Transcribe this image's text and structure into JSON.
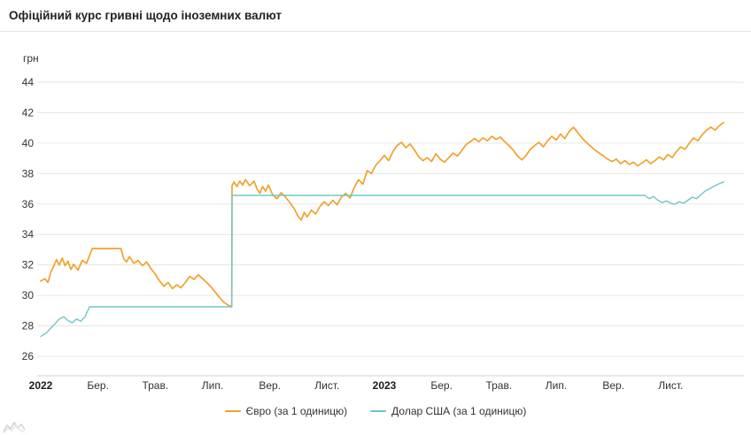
{
  "header": {
    "title": "Офіційний курс гривні щодо іноземних валют"
  },
  "chart_data": {
    "type": "line",
    "title": "Офіційний курс гривні щодо іноземних валют",
    "unit_label": "грн",
    "ylabel": "грн",
    "xlabel": "",
    "ylim": [
      26,
      44
    ],
    "yticks": [
      26,
      28,
      30,
      32,
      34,
      36,
      38,
      40,
      42,
      44
    ],
    "grid": "horizontal",
    "legend_position": "bottom",
    "xticks": [
      {
        "t": 0,
        "label": "2022",
        "bold": true
      },
      {
        "t": 2,
        "label": "Бер.",
        "bold": false
      },
      {
        "t": 4,
        "label": "Трав.",
        "bold": false
      },
      {
        "t": 6,
        "label": "Лип.",
        "bold": false
      },
      {
        "t": 8,
        "label": "Вер.",
        "bold": false
      },
      {
        "t": 10,
        "label": "Лист.",
        "bold": false
      },
      {
        "t": 12,
        "label": "2023",
        "bold": true
      },
      {
        "t": 14,
        "label": "Бер.",
        "bold": false
      },
      {
        "t": 16,
        "label": "Трав.",
        "bold": false
      },
      {
        "t": 18,
        "label": "Лип.",
        "bold": false
      },
      {
        "t": 20,
        "label": "Вер.",
        "bold": false
      },
      {
        "t": 22,
        "label": "Лист.",
        "bold": false
      }
    ],
    "x_unit": "months since 2022-01",
    "series": [
      {
        "name": "Євро (за 1 одиницю)",
        "color": "#f2a12c",
        "points": [
          [
            0,
            30.95
          ],
          [
            0.15,
            31.1
          ],
          [
            0.25,
            30.85
          ],
          [
            0.35,
            31.5
          ],
          [
            0.45,
            31.9
          ],
          [
            0.55,
            32.35
          ],
          [
            0.65,
            32.0
          ],
          [
            0.75,
            32.45
          ],
          [
            0.85,
            31.95
          ],
          [
            0.95,
            32.25
          ],
          [
            1.05,
            31.7
          ],
          [
            1.15,
            32.05
          ],
          [
            1.3,
            31.65
          ],
          [
            1.45,
            32.3
          ],
          [
            1.6,
            32.1
          ],
          [
            1.7,
            32.6
          ],
          [
            1.8,
            33.08
          ],
          [
            2.8,
            33.08
          ],
          [
            2.9,
            32.4
          ],
          [
            3.0,
            32.2
          ],
          [
            3.1,
            32.55
          ],
          [
            3.25,
            32.1
          ],
          [
            3.4,
            32.3
          ],
          [
            3.55,
            31.95
          ],
          [
            3.7,
            32.2
          ],
          [
            3.85,
            31.75
          ],
          [
            4.0,
            31.4
          ],
          [
            4.15,
            30.95
          ],
          [
            4.3,
            30.6
          ],
          [
            4.45,
            30.85
          ],
          [
            4.6,
            30.45
          ],
          [
            4.75,
            30.7
          ],
          [
            4.9,
            30.5
          ],
          [
            5.05,
            30.85
          ],
          [
            5.2,
            31.25
          ],
          [
            5.35,
            31.05
          ],
          [
            5.5,
            31.35
          ],
          [
            5.65,
            31.1
          ],
          [
            5.8,
            30.85
          ],
          [
            5.95,
            30.55
          ],
          [
            6.1,
            30.2
          ],
          [
            6.25,
            29.85
          ],
          [
            6.4,
            29.55
          ],
          [
            6.55,
            29.35
          ],
          [
            6.67,
            29.25
          ],
          [
            6.68,
            37.2
          ],
          [
            6.75,
            37.45
          ],
          [
            6.85,
            37.15
          ],
          [
            6.95,
            37.5
          ],
          [
            7.05,
            37.25
          ],
          [
            7.15,
            37.6
          ],
          [
            7.3,
            37.2
          ],
          [
            7.45,
            37.5
          ],
          [
            7.55,
            37.0
          ],
          [
            7.65,
            36.7
          ],
          [
            7.75,
            37.15
          ],
          [
            7.85,
            36.85
          ],
          [
            7.95,
            37.25
          ],
          [
            8.1,
            36.6
          ],
          [
            8.25,
            36.35
          ],
          [
            8.4,
            36.75
          ],
          [
            8.55,
            36.45
          ],
          [
            8.7,
            36.1
          ],
          [
            8.85,
            35.7
          ],
          [
            9.0,
            35.15
          ],
          [
            9.1,
            34.95
          ],
          [
            9.2,
            35.45
          ],
          [
            9.3,
            35.15
          ],
          [
            9.45,
            35.6
          ],
          [
            9.6,
            35.35
          ],
          [
            9.75,
            35.85
          ],
          [
            9.9,
            36.15
          ],
          [
            10.05,
            35.9
          ],
          [
            10.2,
            36.25
          ],
          [
            10.35,
            35.95
          ],
          [
            10.5,
            36.45
          ],
          [
            10.65,
            36.7
          ],
          [
            10.8,
            36.4
          ],
          [
            10.95,
            37.1
          ],
          [
            11.1,
            37.6
          ],
          [
            11.25,
            37.3
          ],
          [
            11.4,
            38.2
          ],
          [
            11.55,
            38.0
          ],
          [
            11.7,
            38.55
          ],
          [
            11.85,
            38.85
          ],
          [
            12.0,
            39.2
          ],
          [
            12.15,
            38.85
          ],
          [
            12.3,
            39.45
          ],
          [
            12.45,
            39.85
          ],
          [
            12.6,
            40.05
          ],
          [
            12.75,
            39.7
          ],
          [
            12.9,
            39.95
          ],
          [
            13.05,
            39.55
          ],
          [
            13.2,
            39.1
          ],
          [
            13.35,
            38.85
          ],
          [
            13.5,
            39.05
          ],
          [
            13.65,
            38.8
          ],
          [
            13.8,
            39.3
          ],
          [
            13.95,
            38.95
          ],
          [
            14.1,
            38.75
          ],
          [
            14.25,
            39.05
          ],
          [
            14.4,
            39.35
          ],
          [
            14.55,
            39.15
          ],
          [
            14.7,
            39.5
          ],
          [
            14.85,
            39.9
          ],
          [
            15.0,
            40.1
          ],
          [
            15.15,
            40.3
          ],
          [
            15.3,
            40.1
          ],
          [
            15.45,
            40.35
          ],
          [
            15.6,
            40.15
          ],
          [
            15.75,
            40.45
          ],
          [
            15.9,
            40.25
          ],
          [
            16.05,
            40.4
          ],
          [
            16.2,
            40.1
          ],
          [
            16.35,
            39.85
          ],
          [
            16.5,
            39.55
          ],
          [
            16.65,
            39.15
          ],
          [
            16.8,
            38.9
          ],
          [
            16.95,
            39.2
          ],
          [
            17.1,
            39.6
          ],
          [
            17.25,
            39.85
          ],
          [
            17.4,
            40.05
          ],
          [
            17.55,
            39.75
          ],
          [
            17.7,
            40.15
          ],
          [
            17.85,
            40.45
          ],
          [
            18.0,
            40.2
          ],
          [
            18.15,
            40.6
          ],
          [
            18.3,
            40.3
          ],
          [
            18.45,
            40.75
          ],
          [
            18.6,
            41.05
          ],
          [
            18.75,
            40.7
          ],
          [
            18.9,
            40.35
          ],
          [
            19.05,
            40.05
          ],
          [
            19.2,
            39.8
          ],
          [
            19.35,
            39.55
          ],
          [
            19.5,
            39.35
          ],
          [
            19.65,
            39.15
          ],
          [
            19.8,
            38.95
          ],
          [
            19.95,
            38.8
          ],
          [
            20.1,
            38.95
          ],
          [
            20.25,
            38.65
          ],
          [
            20.4,
            38.85
          ],
          [
            20.55,
            38.6
          ],
          [
            20.7,
            38.75
          ],
          [
            20.85,
            38.5
          ],
          [
            21.0,
            38.7
          ],
          [
            21.15,
            38.9
          ],
          [
            21.3,
            38.65
          ],
          [
            21.45,
            38.85
          ],
          [
            21.6,
            39.1
          ],
          [
            21.75,
            38.9
          ],
          [
            21.9,
            39.25
          ],
          [
            22.05,
            39.05
          ],
          [
            22.2,
            39.45
          ],
          [
            22.35,
            39.75
          ],
          [
            22.5,
            39.6
          ],
          [
            22.65,
            40.0
          ],
          [
            22.8,
            40.35
          ],
          [
            22.95,
            40.15
          ],
          [
            23.1,
            40.55
          ],
          [
            23.25,
            40.85
          ],
          [
            23.4,
            41.05
          ],
          [
            23.55,
            40.85
          ],
          [
            23.7,
            41.15
          ],
          [
            23.85,
            41.35
          ]
        ]
      },
      {
        "name": "Долар США (за 1 одиницю)",
        "color": "#6fc7c7",
        "points": [
          [
            0,
            27.3
          ],
          [
            0.2,
            27.55
          ],
          [
            0.35,
            27.85
          ],
          [
            0.5,
            28.15
          ],
          [
            0.65,
            28.45
          ],
          [
            0.8,
            28.6
          ],
          [
            0.95,
            28.35
          ],
          [
            1.1,
            28.2
          ],
          [
            1.25,
            28.45
          ],
          [
            1.4,
            28.3
          ],
          [
            1.55,
            28.6
          ],
          [
            1.7,
            29.25
          ],
          [
            6.67,
            29.25
          ],
          [
            6.68,
            36.57
          ],
          [
            21.1,
            36.57
          ],
          [
            21.25,
            36.35
          ],
          [
            21.4,
            36.5
          ],
          [
            21.55,
            36.25
          ],
          [
            21.7,
            36.1
          ],
          [
            21.85,
            36.2
          ],
          [
            22.0,
            36.05
          ],
          [
            22.15,
            36.0
          ],
          [
            22.3,
            36.15
          ],
          [
            22.45,
            36.05
          ],
          [
            22.6,
            36.25
          ],
          [
            22.75,
            36.45
          ],
          [
            22.9,
            36.35
          ],
          [
            23.05,
            36.6
          ],
          [
            23.2,
            36.85
          ],
          [
            23.35,
            37.0
          ],
          [
            23.5,
            37.15
          ],
          [
            23.65,
            37.3
          ],
          [
            23.85,
            37.45
          ]
        ]
      }
    ]
  },
  "colors": {
    "grid": "#e6e6e6",
    "axis": "#d0d0d0",
    "tick_text": "#333333",
    "title_text": "#222222",
    "background": "#ffffff"
  }
}
